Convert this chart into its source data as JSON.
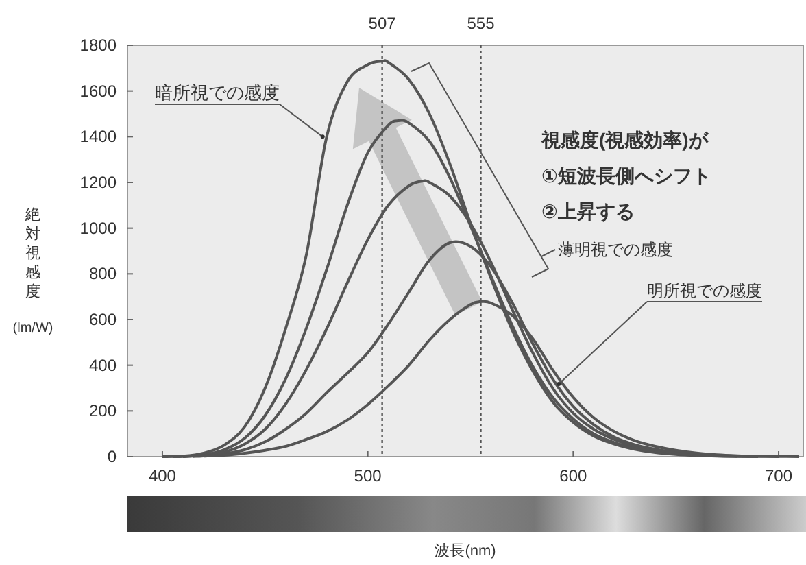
{
  "chart_data": {
    "type": "line",
    "xlabel": "波長(nm)",
    "ylabel": "絶対視感度(lm/W)",
    "xlim": [
      383,
      712
    ],
    "ylim": [
      0,
      1800
    ],
    "xticks": [
      400,
      500,
      600,
      700
    ],
    "yticks": [
      0,
      200,
      400,
      600,
      800,
      1000,
      1200,
      1400,
      1600,
      1800
    ],
    "series": [
      {
        "color": "#555555",
        "x": [
          400,
          410,
          420,
          430,
          440,
          450,
          460,
          470,
          480,
          490,
          500,
          507,
          510,
          520,
          530,
          540,
          550,
          560,
          570,
          580,
          590,
          600,
          610,
          620,
          630,
          640,
          650,
          660,
          670,
          680
        ],
        "values": [
          0,
          2,
          15,
          50,
          130,
          300,
          560,
          880,
          1400,
          1640,
          1715,
          1730,
          1725,
          1650,
          1500,
          1280,
          1020,
          780,
          560,
          380,
          240,
          150,
          90,
          55,
          32,
          18,
          10,
          5,
          2,
          1
        ]
      },
      {
        "color": "#555555",
        "x": [
          405,
          410,
          420,
          430,
          440,
          450,
          460,
          470,
          480,
          490,
          500,
          510,
          515,
          520,
          530,
          540,
          550,
          560,
          570,
          580,
          590,
          600,
          610,
          620,
          630,
          640,
          650,
          660,
          670,
          680,
          690
        ],
        "values": [
          0,
          1,
          8,
          30,
          80,
          180,
          340,
          560,
          820,
          1100,
          1330,
          1450,
          1470,
          1460,
          1380,
          1220,
          1010,
          790,
          580,
          400,
          260,
          165,
          100,
          62,
          38,
          22,
          12,
          6,
          3,
          1,
          0
        ]
      },
      {
        "color": "#555555",
        "x": [
          410,
          420,
          430,
          440,
          450,
          460,
          470,
          480,
          490,
          500,
          510,
          520,
          527,
          530,
          540,
          550,
          560,
          570,
          580,
          590,
          600,
          610,
          620,
          630,
          640,
          650,
          660,
          670,
          680,
          690
        ],
        "values": [
          0,
          5,
          20,
          55,
          120,
          230,
          380,
          560,
          760,
          950,
          1100,
          1185,
          1206,
          1200,
          1140,
          1020,
          850,
          650,
          460,
          300,
          190,
          120,
          75,
          45,
          27,
          15,
          8,
          4,
          2,
          1
        ]
      },
      {
        "color": "#555555",
        "x": [
          415,
          420,
          430,
          440,
          450,
          460,
          470,
          480,
          490,
          500,
          510,
          520,
          530,
          540,
          550,
          560,
          570,
          580,
          590,
          600,
          610,
          620,
          630,
          640,
          650,
          660,
          670,
          680,
          690,
          700
        ],
        "values": [
          1,
          3,
          12,
          30,
          65,
          120,
          190,
          280,
          365,
          455,
          580,
          720,
          860,
          936,
          920,
          830,
          680,
          500,
          340,
          220,
          140,
          85,
          52,
          32,
          18,
          10,
          5,
          2,
          1,
          0
        ]
      },
      {
        "color": "#555555",
        "x": [
          420,
          430,
          440,
          450,
          460,
          470,
          480,
          490,
          500,
          510,
          520,
          530,
          540,
          550,
          555,
          560,
          570,
          580,
          590,
          600,
          610,
          620,
          630,
          640,
          650,
          660,
          670,
          680,
          690,
          700,
          710
        ],
        "values": [
          2,
          6,
          15,
          28,
          45,
          75,
          110,
          160,
          228,
          310,
          400,
          510,
          600,
          665,
          678,
          672,
          620,
          520,
          380,
          260,
          170,
          110,
          70,
          45,
          28,
          16,
          8,
          4,
          2,
          1,
          0
        ]
      }
    ],
    "ref_lines": [
      {
        "axis": "x",
        "value": 507,
        "label": "507",
        "color": "#555555",
        "line_style": "dotted"
      },
      {
        "axis": "x",
        "value": 555,
        "label": "555",
        "color": "#555555",
        "line_style": "dotted"
      }
    ],
    "annotations": [
      {
        "text": "暗所視での感度",
        "x": 478,
        "y": 1400
      },
      "視感度(視感効率)が",
      "①短波長側へシフト",
      "②上昇する",
      "薄明視での感度",
      {
        "text": "明所視での感度",
        "x": 593,
        "y": 318
      }
    ]
  }
}
